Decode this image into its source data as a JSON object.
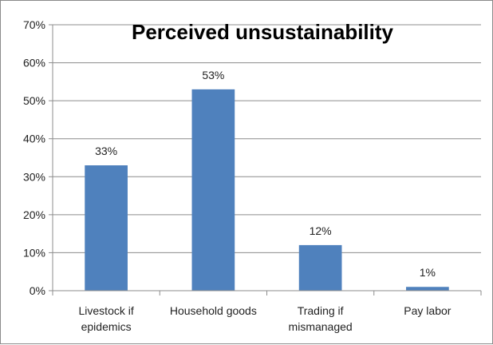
{
  "chart_data": {
    "type": "bar",
    "title": "Perceived unsustainability",
    "xlabel": "",
    "ylabel": "",
    "categories": [
      [
        "Livestock if",
        "epidemics"
      ],
      [
        "Household goods"
      ],
      [
        "Trading if",
        "mismanaged"
      ],
      [
        "Pay labor"
      ]
    ],
    "values": [
      33,
      53,
      12,
      1
    ],
    "data_labels": [
      "33%",
      "53%",
      "12%",
      "1%"
    ],
    "ylim": [
      0,
      70
    ],
    "yticks": [
      0,
      10,
      20,
      30,
      40,
      50,
      60,
      70
    ],
    "ytick_labels": [
      "0%",
      "10%",
      "20%",
      "30%",
      "40%",
      "50%",
      "60%",
      "70%"
    ],
    "grid": true,
    "legend": "none",
    "bar_color": "#4F81BD"
  }
}
